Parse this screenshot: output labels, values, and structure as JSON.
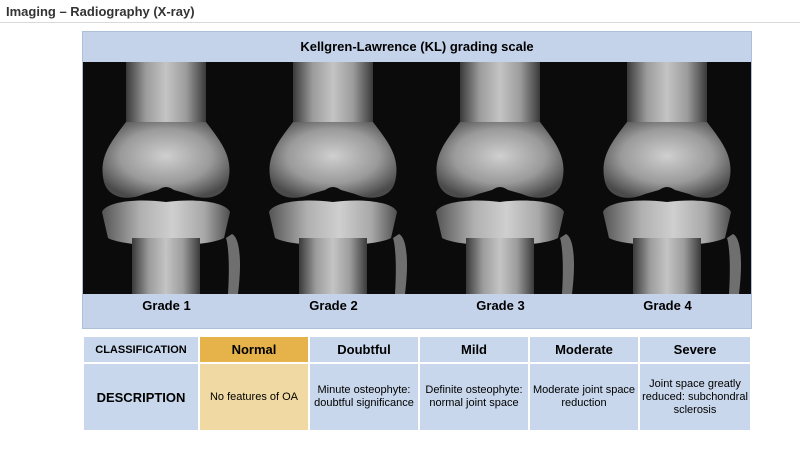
{
  "slide_title": "Imaging – Radiography (X-ray)",
  "panel": {
    "heading": "Kellgren-Lawrence (KL) grading scale",
    "grades": [
      "Grade 1",
      "Grade 2",
      "Grade 3",
      "Grade 4"
    ]
  },
  "table": {
    "header_label": "CLASSIFICATION",
    "description_label": "DESCRIPTION",
    "classes": [
      "Normal",
      "Doubtful",
      "Mild",
      "Moderate",
      "Severe"
    ],
    "descriptions": [
      "No features of OA",
      "Minute osteophyte: doubtful significance",
      "Definite osteophyte: normal joint space",
      "Moderate joint space reduction",
      "Joint space greatly reduced: subchondral sclerosis"
    ]
  },
  "colors": {
    "panel_bg": "#c5d3ea",
    "cell_bg": "#c8d7ec",
    "highlight_header": "#e5b34a",
    "highlight_cell": "#f0d9a2"
  }
}
